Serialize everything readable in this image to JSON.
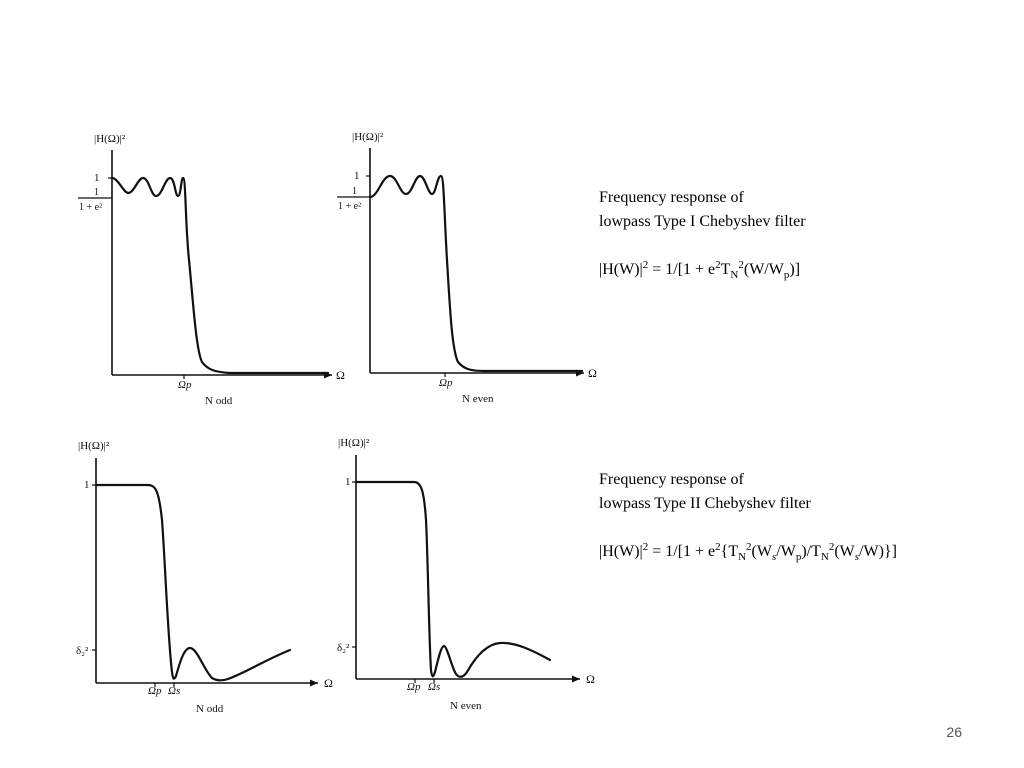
{
  "panels": {
    "type1_odd": {
      "ylabel": "|H(Ω)|²",
      "ytick_one": "1",
      "ytick_frac_num": "1",
      "ytick_frac_den": "1 + e²",
      "xlabel": "Ω",
      "xtick_p": "Ωp",
      "subtitle": "N odd"
    },
    "type1_even": {
      "ylabel": "|H(Ω)|²",
      "ytick_one": "1",
      "ytick_frac_num": "1",
      "ytick_frac_den": "1 + e²",
      "xlabel": "Ω",
      "xtick_p": "Ωp",
      "subtitle": "N even"
    },
    "type2_odd": {
      "ylabel": "|H(Ω)|²",
      "ytick_one": "1",
      "ytick_delta": "δ₂²",
      "xlabel": "Ω",
      "xtick_p": "Ωp",
      "xtick_s": "Ωs",
      "subtitle": "N odd"
    },
    "type2_even": {
      "ylabel": "|H(Ω)|²",
      "ytick_one": "1",
      "ytick_delta": "δ₂²",
      "xlabel": "Ω",
      "xtick_p": "Ωp",
      "xtick_s": "Ωs",
      "subtitle": "N even"
    }
  },
  "captions": {
    "type1": {
      "line1": "Frequency response of",
      "line2": "lowpass Type I Chebyshev filter",
      "formula": {
        "p1": "|H(W)|",
        "sup1": "2",
        "p2": " = 1/[1 + e",
        "sup2": "2",
        "p3": "T",
        "sub3": "N",
        "sup3": "2",
        "p4": "(W/W",
        "sub4": "p",
        "p5": ")]"
      }
    },
    "type2": {
      "line1": "Frequency response of",
      "line2": "lowpass Type II Chebyshev filter",
      "formula": {
        "p1": "|H(W)|",
        "sup1": "2",
        "p2": " = 1/[1 + e",
        "sup2": "2",
        "p3": "{T",
        "sub3": "N",
        "sup3": "2",
        "p4": "(W",
        "sub4": "s",
        "p5": "/W",
        "sub5": "p",
        "p6": ")/T",
        "sub6": "N",
        "sup6": "2",
        "p7": "(W",
        "sub7": "s",
        "p8": "/W)}]"
      }
    }
  },
  "page_number": "26"
}
